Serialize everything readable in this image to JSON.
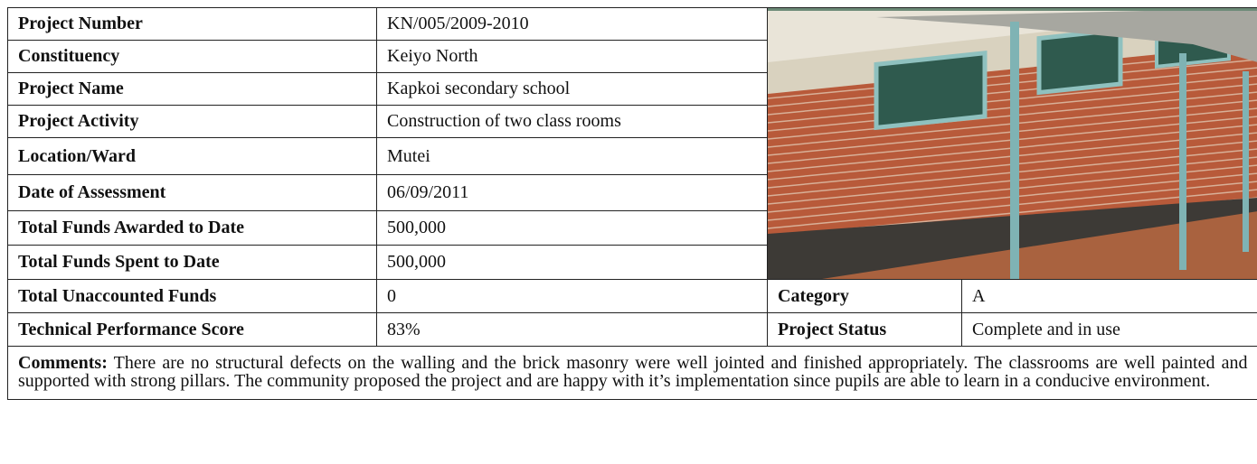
{
  "table": {
    "rows": [
      [
        "Project Number",
        "KN/005/2009-2010"
      ],
      [
        "Constituency",
        "Keiyo North"
      ],
      [
        "Project Name",
        "Kapkoi secondary school"
      ],
      [
        "Project Activity",
        "Construction of two class rooms"
      ],
      [
        "Location/Ward",
        "Mutei"
      ],
      [
        "Date of Assessment",
        "06/09/2011"
      ],
      [
        "Total Funds Awarded to Date",
        "500,000"
      ],
      [
        "Total Funds Spent to Date",
        "500,000"
      ],
      [
        "Total Unaccounted Funds",
        "0",
        "Category",
        "A"
      ],
      [
        "Technical Performance Score",
        "83%",
        "Project Status",
        "Complete and in use"
      ]
    ],
    "comments": {
      "label": "Comments:",
      "text": "There are no structural defects on the walling and the brick masonry were well jointed and finished appropriately. The classrooms are well painted and supported with strong pillars. The community proposed the project and are happy with it’s implementation since pupils are able to learn in a conducive environment."
    }
  }
}
